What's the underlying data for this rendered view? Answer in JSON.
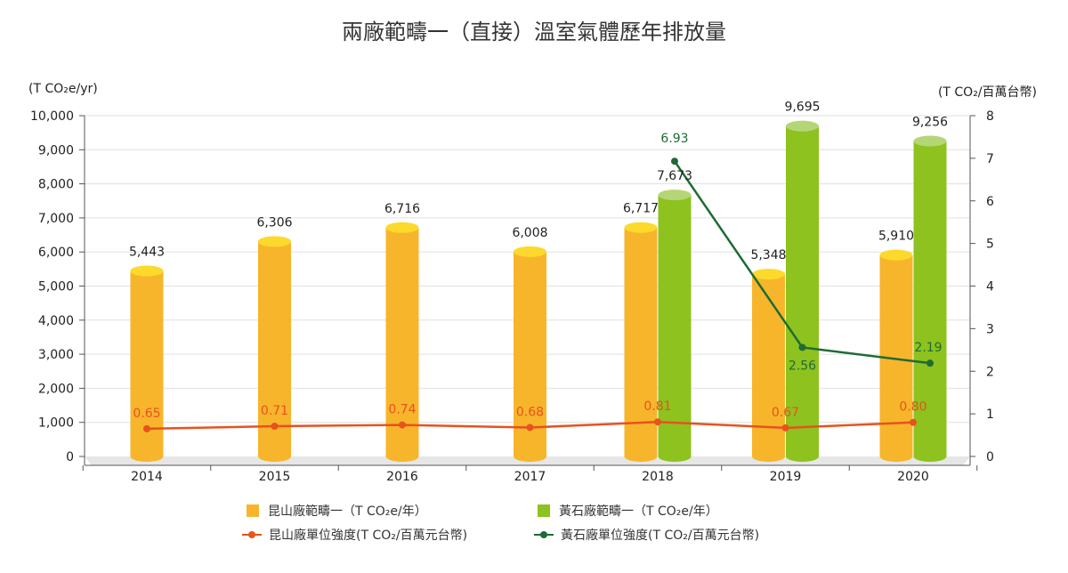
{
  "chart_data": {
    "type": "bar",
    "title": "兩廠範疇一（直接）溫室氣體歷年排放量",
    "categories": [
      "2014",
      "2015",
      "2016",
      "2017",
      "2018",
      "2019",
      "2020"
    ],
    "y_left_label": "(T CO₂e/yr)",
    "y_right_label": "(T CO₂/百萬台幣)",
    "y_left_range": [
      0,
      10000
    ],
    "y_left_ticks": [
      "0",
      "1,000",
      "2,000",
      "3,000",
      "4,000",
      "5,000",
      "6,000",
      "7,000",
      "8,000",
      "9,000",
      "10,000"
    ],
    "y_right_range": [
      0,
      8
    ],
    "y_right_ticks": [
      "0",
      "1",
      "2",
      "3",
      "4",
      "5",
      "6",
      "7",
      "8"
    ],
    "series": [
      {
        "name": "昆山廠範疇一（T CO₂e/年）",
        "kind": "bar",
        "axis": "left",
        "color": "#F7B52C",
        "cap_color": "#FCD92B",
        "values": [
          5443,
          6306,
          6716,
          6008,
          6717,
          5348,
          5910
        ],
        "labels": [
          "5,443",
          "6,306",
          "6,716",
          "6,008",
          "6,717",
          "5,348",
          "5,910"
        ]
      },
      {
        "name": "黃石廠範疇一（T CO₂e/年）",
        "kind": "bar",
        "axis": "left",
        "color": "#8DC21F",
        "cap_color": "#B5D676",
        "values": [
          null,
          null,
          null,
          null,
          7673,
          9695,
          9256
        ],
        "labels": [
          "",
          "",
          "",
          "",
          "7,673",
          "9,695",
          "9,256"
        ]
      },
      {
        "name": "昆山廠單位強度(T CO₂/百萬元台幣)",
        "kind": "line",
        "axis": "right",
        "color": "#E8521D",
        "values": [
          0.65,
          0.71,
          0.74,
          0.68,
          0.81,
          0.67,
          0.8
        ],
        "labels": [
          "0.65",
          "0.71",
          "0.74",
          "0.68",
          "0.81",
          "0.67",
          "0.80"
        ]
      },
      {
        "name": "黃石廠單位強度(T CO₂/百萬元台幣)",
        "kind": "line",
        "axis": "right",
        "color": "#1E6B34",
        "values": [
          null,
          null,
          null,
          null,
          6.93,
          2.56,
          2.19
        ],
        "labels": [
          "",
          "",
          "",
          "",
          "6.93",
          "2.56",
          "2.19"
        ]
      }
    ],
    "grid": true,
    "legend_position": "bottom"
  },
  "colors": {
    "grid": "#E0E0E0",
    "axis": "#555555",
    "text": "#222222",
    "floor": "#E6E6E6"
  }
}
